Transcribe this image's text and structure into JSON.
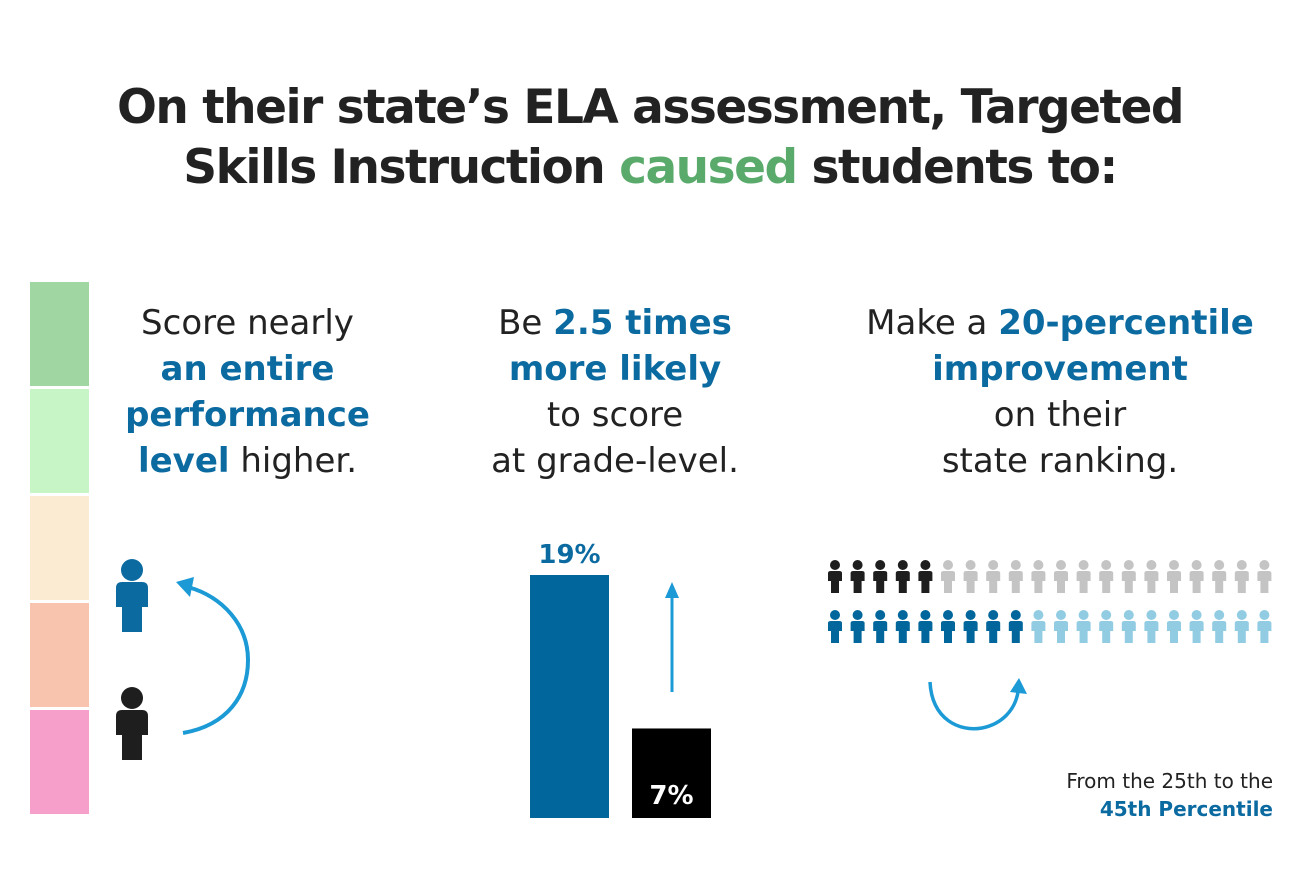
{
  "title": {
    "line1": "On their state’s ELA assessment, Targeted",
    "line2_pre": "Skills Instruction ",
    "line2_highlight": "caused",
    "line2_post": " students to:"
  },
  "level_strip": {
    "colors": [
      "#a0d6a2",
      "#c8f5c6",
      "#fbebd3",
      "#f8c4ad",
      "#f79fcb"
    ]
  },
  "col1": {
    "line1": "Score nearly",
    "em": "an entire performance level",
    "post": " higher."
  },
  "col2": {
    "pre": "Be ",
    "em": "2.5 times more likely",
    "post1": "to score",
    "post2": "at grade-level."
  },
  "col3": {
    "pre": "Make a ",
    "em": "20-percentile improvement",
    "post1": "on their",
    "post2": "state ranking."
  },
  "bars": {
    "values": [
      19,
      7
    ],
    "labels": [
      "19%",
      "7%"
    ],
    "colors": [
      "#00669b",
      "#000000"
    ]
  },
  "people": {
    "top_row_dark": 5,
    "bottom_row_dark": 9,
    "per_row": 20,
    "colors": {
      "black": "#1e1e1e",
      "grey": "#c4c4c4",
      "blue": "#00669b",
      "light_blue": "#91cce2"
    }
  },
  "footnote": {
    "line1": "From the 25th to the",
    "line2": "45th Percentile"
  },
  "accent": {
    "blue": "#0b6aa0",
    "arrow": "#1b9ad6",
    "green": "#5aaa6b"
  },
  "icons": [
    "person-icon",
    "curved-arrow-icon",
    "up-arrow-icon"
  ]
}
